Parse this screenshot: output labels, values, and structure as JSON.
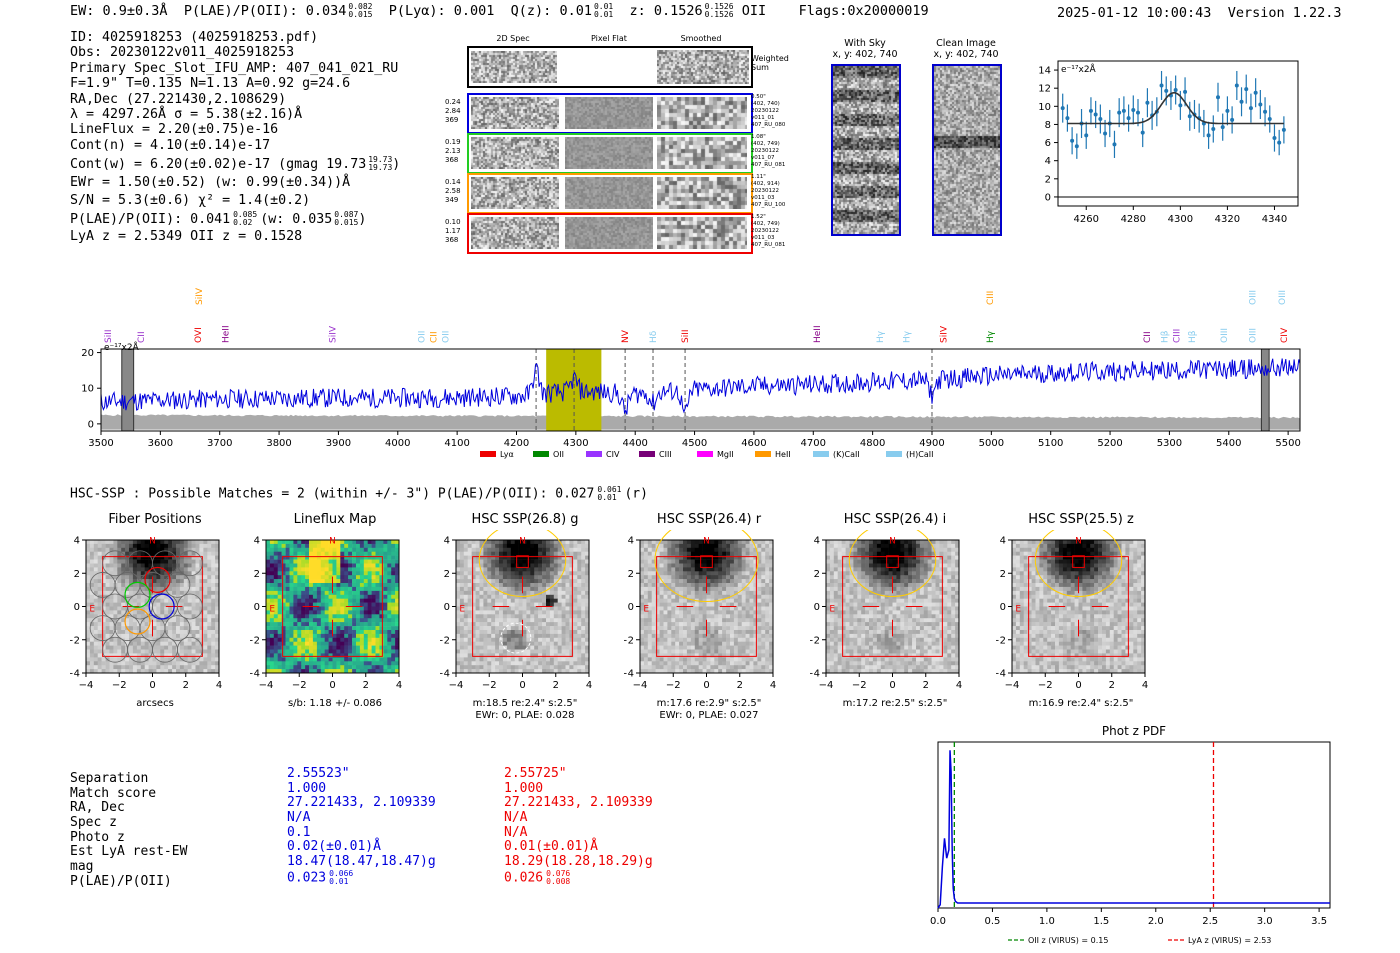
{
  "header": {
    "ew": "EW: 0.9±0.3Å",
    "plae_label": "P(LAE)/P(OII): 0.034",
    "plae_hi": "0.082",
    "plae_lo": "0.015",
    "plya": "P(Lyα): 0.001",
    "qz_label": "Q(z): 0.01",
    "qz_hi": "0.01",
    "qz_lo": "0.01",
    "z_label": "z: 0.1526",
    "z_hi": "0.1526",
    "z_lo": "0.1526",
    "z_line": "OII",
    "flags": "Flags:0x20000019",
    "datetime": "2025-01-12 10:00:43",
    "version": "Version 1.22.3"
  },
  "info": {
    "lines": [
      "ID: 4025918253 (4025918253.pdf)",
      "Obs: 20230122v011_4025918253",
      "Primary Spec_Slot_IFU_AMP: 407_041_021_RU",
      "F=1.9\"  T=0.135  N=1.13  A=0.92  g=24.6",
      "RA,Dec (27.221430,2.108629)",
      "λ = 4297.26Å  σ = 5.38(±2.16)Å",
      "LineFlux = 2.20(±0.75)e-16",
      "Cont(n) = 4.10(±0.14)e-17"
    ],
    "contw_label": "Cont(w) = 6.20(±0.02)e-17 (gmag 19.73",
    "contw_hi": "19.73",
    "contw_lo": "19.73",
    "ewr": "EWr = 1.50(±0.52)  (w: 0.99(±0.34))Å",
    "sn": "S/N = 5.3(±0.6)  χ² = 1.4(±0.2)",
    "plae_label": "P(LAE)/P(OII): 0.041",
    "plae_hi": "0.085",
    "plae_lo": "0.02",
    "plae_w_label": "(w: 0.035",
    "plae_w_hi": "0.087",
    "plae_w_lo": "0.015",
    "lyaz": "LyA z = 2.5349  OII z = 0.1528"
  },
  "cutouts": {
    "col_titles": [
      "2D Spec",
      "Pixel Flat",
      "Smoothed"
    ],
    "weighted_label": "Weighted Sum",
    "rows": [
      {
        "left": [
          "0.24",
          "2.84",
          "369"
        ],
        "right": [
          "0.50\"",
          "(402, 740)",
          "20230122",
          "v011_01",
          "407_RU_080"
        ],
        "color": "#0000dd"
      },
      {
        "left": [
          "0.19",
          "2.13",
          "368"
        ],
        "right": [
          "1.08\"",
          "(402, 749)",
          "20230122",
          "v011_07",
          "407_RU_081"
        ],
        "color": "#22cc22"
      },
      {
        "left": [
          "0.14",
          "2.58",
          "349"
        ],
        "right": [
          "1.11\"",
          "(402, 914)",
          "20230122",
          "v011_03",
          "407_RU_100"
        ],
        "color": "#ff9900"
      },
      {
        "left": [
          "0.10",
          "1.17",
          "368"
        ],
        "right": [
          "1.52\"",
          "(402, 749)",
          "20230122",
          "v011_03",
          "407_RU_081"
        ],
        "color": "#ee0000"
      }
    ],
    "with_sky_title": "With Sky",
    "with_sky_coords": "x, y: 402, 740",
    "clean_title": "Clean Image",
    "clean_coords": "x, y: 402, 740"
  },
  "fit_plot": {
    "chart_data": {
      "type": "scatter",
      "title": "",
      "ylabel_note": "e⁻¹⁷x2Å",
      "xlim": [
        4248,
        4350
      ],
      "ylim": [
        -1,
        15
      ],
      "xticks": [
        4260,
        4280,
        4300,
        4320,
        4340
      ],
      "yticks": [
        0,
        2,
        4,
        6,
        8,
        10,
        12,
        14
      ],
      "points": [
        {
          "x": 4250,
          "y": 9.8,
          "e": 1.6
        },
        {
          "x": 4252,
          "y": 8.7,
          "e": 1.5
        },
        {
          "x": 4254,
          "y": 6.2,
          "e": 1.5
        },
        {
          "x": 4256,
          "y": 5.6,
          "e": 1.4
        },
        {
          "x": 4258,
          "y": 8.1,
          "e": 1.6
        },
        {
          "x": 4260,
          "y": 6.8,
          "e": 1.5
        },
        {
          "x": 4262,
          "y": 9.5,
          "e": 1.5
        },
        {
          "x": 4264,
          "y": 9.1,
          "e": 1.5
        },
        {
          "x": 4266,
          "y": 8.6,
          "e": 1.6
        },
        {
          "x": 4268,
          "y": 7.0,
          "e": 1.5
        },
        {
          "x": 4270,
          "y": 8.1,
          "e": 1.5
        },
        {
          "x": 4272,
          "y": 5.8,
          "e": 1.5
        },
        {
          "x": 4274,
          "y": 9.3,
          "e": 1.6
        },
        {
          "x": 4276,
          "y": 9.5,
          "e": 1.6
        },
        {
          "x": 4278,
          "y": 8.7,
          "e": 1.5
        },
        {
          "x": 4280,
          "y": 9.6,
          "e": 1.6
        },
        {
          "x": 4282,
          "y": 9.3,
          "e": 1.5
        },
        {
          "x": 4284,
          "y": 7.1,
          "e": 1.6
        },
        {
          "x": 4286,
          "y": 10.4,
          "e": 1.6
        },
        {
          "x": 4288,
          "y": 9.0,
          "e": 1.6
        },
        {
          "x": 4290,
          "y": 9.4,
          "e": 1.6
        },
        {
          "x": 4292,
          "y": 12.3,
          "e": 1.6
        },
        {
          "x": 4294,
          "y": 11.7,
          "e": 1.6
        },
        {
          "x": 4296,
          "y": 11.2,
          "e": 1.6
        },
        {
          "x": 4298,
          "y": 11.8,
          "e": 1.6
        },
        {
          "x": 4300,
          "y": 10.1,
          "e": 1.6
        },
        {
          "x": 4302,
          "y": 11.6,
          "e": 1.6
        },
        {
          "x": 4304,
          "y": 8.9,
          "e": 1.6
        },
        {
          "x": 4306,
          "y": 9.1,
          "e": 1.6
        },
        {
          "x": 4308,
          "y": 8.7,
          "e": 1.6
        },
        {
          "x": 4310,
          "y": 8.1,
          "e": 1.5
        },
        {
          "x": 4312,
          "y": 6.8,
          "e": 1.5
        },
        {
          "x": 4314,
          "y": 7.5,
          "e": 1.5
        },
        {
          "x": 4316,
          "y": 11.0,
          "e": 1.6
        },
        {
          "x": 4318,
          "y": 7.7,
          "e": 1.5
        },
        {
          "x": 4320,
          "y": 9.5,
          "e": 1.6
        },
        {
          "x": 4322,
          "y": 8.5,
          "e": 1.5
        },
        {
          "x": 4324,
          "y": 12.3,
          "e": 1.6
        },
        {
          "x": 4326,
          "y": 10.5,
          "e": 1.6
        },
        {
          "x": 4328,
          "y": 11.9,
          "e": 1.6
        },
        {
          "x": 4330,
          "y": 9.8,
          "e": 1.6
        },
        {
          "x": 4332,
          "y": 11.5,
          "e": 1.6
        },
        {
          "x": 4334,
          "y": 10.2,
          "e": 1.6
        },
        {
          "x": 4336,
          "y": 9.4,
          "e": 1.6
        },
        {
          "x": 4338,
          "y": 8.6,
          "e": 1.5
        },
        {
          "x": 4340,
          "y": 6.5,
          "e": 1.5
        },
        {
          "x": 4342,
          "y": 6.0,
          "e": 1.4
        },
        {
          "x": 4344,
          "y": 7.4,
          "e": 1.5
        }
      ],
      "model": {
        "continuum": 8.1,
        "amp": 3.4,
        "center": 4297.3,
        "sigma": 5.4,
        "xmin": 4252,
        "xmax": 4344
      }
    }
  },
  "spectrum": {
    "chart_data": {
      "type": "line",
      "title": "",
      "ylabel_note": "e⁻¹⁷x2Å",
      "xlim": [
        3500,
        5520
      ],
      "ylim": [
        -2,
        21
      ],
      "xticks": [
        3500,
        3600,
        3700,
        3800,
        3900,
        4000,
        4100,
        4200,
        4300,
        4400,
        4500,
        4600,
        4700,
        4800,
        4900,
        5000,
        5100,
        5200,
        5300,
        5400,
        5500
      ],
      "yticks": [
        0,
        10,
        20
      ],
      "highlight_band": [
        4250,
        4343
      ],
      "masked_bands": [
        [
          3535,
          3555
        ],
        [
          5455,
          5468
        ]
      ],
      "dashed_lines": [
        4233,
        4297,
        4383,
        4430,
        4484,
        4900
      ],
      "continuum_knots": [
        {
          "x": 3500,
          "y": 6.2
        },
        {
          "x": 3600,
          "y": 6.6
        },
        {
          "x": 3700,
          "y": 7.0
        },
        {
          "x": 3800,
          "y": 7.1
        },
        {
          "x": 3900,
          "y": 7.3
        },
        {
          "x": 4000,
          "y": 7.2
        },
        {
          "x": 4100,
          "y": 7.4
        },
        {
          "x": 4200,
          "y": 7.8
        },
        {
          "x": 4300,
          "y": 9.2
        },
        {
          "x": 4400,
          "y": 8.4
        },
        {
          "x": 4500,
          "y": 9.6
        },
        {
          "x": 4600,
          "y": 10.6
        },
        {
          "x": 4700,
          "y": 11.0
        },
        {
          "x": 4800,
          "y": 11.8
        },
        {
          "x": 4900,
          "y": 12.3
        },
        {
          "x": 5000,
          "y": 13.5
        },
        {
          "x": 5100,
          "y": 14.3
        },
        {
          "x": 5200,
          "y": 14.7
        },
        {
          "x": 5300,
          "y": 15.0
        },
        {
          "x": 5400,
          "y": 15.3
        },
        {
          "x": 5500,
          "y": 15.8
        },
        {
          "x": 5520,
          "y": 16.0
        }
      ],
      "features": [
        {
          "x": 4233,
          "dy": 7
        },
        {
          "x": 4297,
          "dy": 3.5
        },
        {
          "x": 4383,
          "dy": -5
        },
        {
          "x": 4430,
          "dy": -3
        },
        {
          "x": 4484,
          "dy": -7
        },
        {
          "x": 4900,
          "dy": -4
        }
      ],
      "line_labels": [
        {
          "name": "SiII",
          "x": 3512,
          "tier": 1,
          "color": "#9933cc"
        },
        {
          "name": "CII",
          "x": 3567,
          "tier": 1,
          "color": "#9933cc"
        },
        {
          "name": "SiIV",
          "x": 3665,
          "tier": 0,
          "color": "#ff9900"
        },
        {
          "name": "OVI",
          "x": 3663,
          "tier": 1,
          "color": "#ee0000"
        },
        {
          "name": "HeII",
          "x": 3710,
          "tier": 1,
          "color": "#880088"
        },
        {
          "name": "SiIV",
          "x": 3890,
          "tier": 1,
          "color": "#9933cc"
        },
        {
          "name": "OII",
          "x": 4040,
          "tier": 1,
          "color": "#88ccee"
        },
        {
          "name": "CII",
          "x": 4060,
          "tier": 1,
          "color": "#ff9900"
        },
        {
          "name": "OII",
          "x": 4080,
          "tier": 1,
          "color": "#88ccee"
        },
        {
          "name": "NV",
          "x": 4383,
          "tier": 1,
          "color": "#ee0000"
        },
        {
          "name": "Hδ",
          "x": 4430,
          "tier": 1,
          "color": "#88ccee"
        },
        {
          "name": "SiII",
          "x": 4484,
          "tier": 1,
          "color": "#ee0000"
        },
        {
          "name": "HeII",
          "x": 4706,
          "tier": 1,
          "color": "#880088"
        },
        {
          "name": "Hγ",
          "x": 4812,
          "tier": 1,
          "color": "#88ccee"
        },
        {
          "name": "Hγ",
          "x": 4857,
          "tier": 1,
          "color": "#88ccee"
        },
        {
          "name": "SiIV",
          "x": 4919,
          "tier": 1,
          "color": "#ee0000"
        },
        {
          "name": "CIII",
          "x": 4998,
          "tier": 0,
          "color": "#ff9900"
        },
        {
          "name": "Hγ",
          "x": 4998,
          "tier": 1,
          "color": "#008800"
        },
        {
          "name": "CII",
          "x": 5262,
          "tier": 1,
          "color": "#880088"
        },
        {
          "name": "Hβ",
          "x": 5292,
          "tier": 1,
          "color": "#88ccee"
        },
        {
          "name": "CIII",
          "x": 5312,
          "tier": 1,
          "color": "#9933cc"
        },
        {
          "name": "Hβ",
          "x": 5338,
          "tier": 1,
          "color": "#88ccee"
        },
        {
          "name": "OIII",
          "x": 5392,
          "tier": 1,
          "color": "#88ccee"
        },
        {
          "name": "OIII",
          "x": 5440,
          "tier": 1,
          "color": "#88ccee"
        },
        {
          "name": "OIII",
          "x": 5440,
          "tier": 0,
          "color": "#88ccee"
        },
        {
          "name": "OIII",
          "x": 5490,
          "tier": 0,
          "color": "#88ccee"
        },
        {
          "name": "CIV",
          "x": 5493,
          "tier": 1,
          "color": "#ee0000"
        }
      ]
    },
    "legend": [
      {
        "label": "Lyα",
        "color": "#ee0000"
      },
      {
        "label": "OII",
        "color": "#008800"
      },
      {
        "label": "CIV",
        "color": "#9933ff"
      },
      {
        "label": "CIII",
        "color": "#770077"
      },
      {
        "label": "MgII",
        "color": "#ff00ff"
      },
      {
        "label": "HeII",
        "color": "#ff9900"
      },
      {
        "label": "(K)CaII",
        "color": "#88ccee"
      },
      {
        "label": "(H)CaII",
        "color": "#88ccee"
      }
    ]
  },
  "hsc": {
    "title_label": "HSC-SSP : Possible Matches = 2 (within +/- 3\")  P(LAE)/P(OII): 0.027",
    "title_hi": "0.061",
    "title_lo": "0.01",
    "title_band": "(r)",
    "panels": [
      {
        "title": "Fiber Positions",
        "caption1": "arcsecs",
        "caption2": "",
        "kind": "fiber"
      },
      {
        "title": "Lineflux Map",
        "caption1": "s/b: 1.18 +/- 0.086",
        "caption2": "",
        "kind": "lineflux"
      },
      {
        "title": "HSC SSP(26.8) g",
        "caption1": "m:18.5  re:2.4\"  s:2.5\"",
        "caption2": "EWr: 0, PLAE: 0.028",
        "kind": "g"
      },
      {
        "title": "HSC SSP(26.4) r",
        "caption1": "m:17.6  re:2.9\"  s:2.5\"",
        "caption2": "EWr: 0, PLAE: 0.027",
        "kind": "r"
      },
      {
        "title": "HSC SSP(26.4) i",
        "caption1": "m:17.2  re:2.5\"  s:2.5\"",
        "caption2": "",
        "kind": "i"
      },
      {
        "title": "HSC SSP(25.5) z",
        "caption1": "m:16.9  re:2.4\"  s:2.5\"",
        "caption2": "",
        "kind": "z"
      }
    ],
    "axis_ticks": [
      "−4",
      "−2",
      "0",
      "2",
      "4"
    ],
    "n_label": "N",
    "e_label": "E"
  },
  "matches": {
    "labels": [
      "Separation",
      "Match score",
      "RA, Dec",
      "Spec z",
      "Photo z",
      "Est LyA rest-EW",
      "mag"
    ],
    "plae_label": "P(LAE)/P(OII)",
    "m1": {
      "values": [
        "2.55523\"",
        "1.000",
        "27.221433, 2.109339",
        "N/A",
        "0.1",
        "0.02(±0.01)Å",
        "18.47(18.47,18.47)g"
      ],
      "plae": "0.023",
      "plae_hi": "0.066",
      "plae_lo": "0.01"
    },
    "m2": {
      "values": [
        "2.55725\"",
        "1.000",
        "27.221433, 2.109339",
        "N/A",
        "N/A",
        "0.01(±0.01)Å",
        "18.29(18.28,18.29)g"
      ],
      "plae": "0.026",
      "plae_hi": "0.076",
      "plae_lo": "0.008"
    }
  },
  "photz": {
    "chart_data": {
      "type": "line",
      "title": "Phot z PDF",
      "xlim": [
        0,
        3.6
      ],
      "xticks": [
        "0.0",
        "0.5",
        "1.0",
        "1.5",
        "2.0",
        "2.5",
        "3.0",
        "3.5"
      ],
      "x": [
        0.0,
        0.02,
        0.04,
        0.06,
        0.08,
        0.1,
        0.11,
        0.12,
        0.13,
        0.14,
        0.15,
        0.16,
        0.18,
        0.2,
        0.3,
        0.5,
        1.0,
        2.0,
        3.0,
        3.6
      ],
      "y": [
        0.0,
        0.02,
        0.25,
        0.42,
        0.3,
        0.35,
        0.95,
        0.82,
        0.35,
        0.12,
        0.06,
        0.04,
        0.03,
        0.03,
        0.03,
        0.03,
        0.03,
        0.03,
        0.03,
        0.03
      ],
      "vlines": [
        {
          "x": 0.15,
          "color": "#008800",
          "label": "OII z (VIRUS) = 0.15"
        },
        {
          "x": 2.53,
          "color": "#ee0000",
          "label": "LyA z (VIRUS) = 2.53"
        }
      ]
    }
  }
}
